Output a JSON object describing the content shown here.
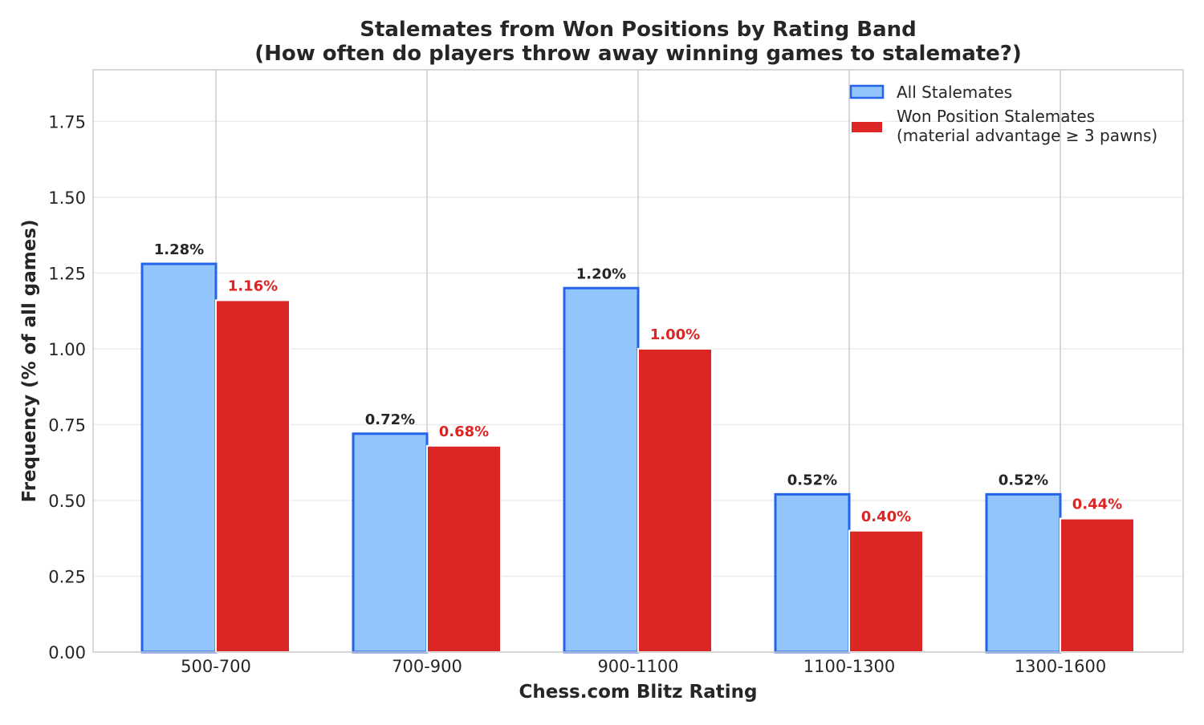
{
  "chart_data": {
    "type": "bar",
    "title_line1": "Stalemates from Won Positions by Rating Band",
    "title_line2": "(How often do players throw away winning games to stalemate?)",
    "xlabel": "Chess.com Blitz Rating",
    "ylabel": "Frequency (% of all games)",
    "categories": [
      "500-700",
      "700-900",
      "900-1100",
      "1100-1300",
      "1300-1600"
    ],
    "ylim": [
      0,
      1.92
    ],
    "yticks": [
      "0.00",
      "0.25",
      "0.50",
      "0.75",
      "1.00",
      "1.25",
      "1.50",
      "1.75"
    ],
    "ytick_values": [
      0,
      0.25,
      0.5,
      0.75,
      1.0,
      1.25,
      1.5,
      1.75
    ],
    "grid": true,
    "legend_position": "top-right",
    "series": [
      {
        "name": "All Stalemates",
        "values": [
          1.28,
          0.72,
          1.2,
          0.52,
          0.52
        ],
        "labels": [
          "1.28%",
          "0.72%",
          "1.20%",
          "0.52%",
          "0.52%"
        ],
        "fill": "#93c5fd",
        "stroke": "#2563eb",
        "label_color": "#262626"
      },
      {
        "name_line1": "Won Position Stalemates",
        "name_line2": "(material advantage ≥ 3 pawns)",
        "values": [
          1.16,
          0.68,
          1.0,
          0.4,
          0.44
        ],
        "labels": [
          "1.16%",
          "0.68%",
          "1.00%",
          "0.40%",
          "0.44%"
        ],
        "fill": "#dc2626",
        "stroke": "#ffffff",
        "label_color": "#dc2626"
      }
    ]
  }
}
